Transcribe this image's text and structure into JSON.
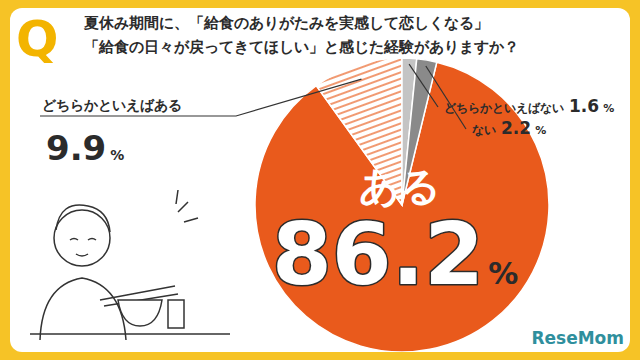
{
  "chart_data": {
    "type": "pie",
    "badge": "Q",
    "title": [
      "夏休み期間に、「給食のありがたみを実感して恋しくなる」",
      "「給食の日々が戻ってきてほしい」と感じた経験がありますか？"
    ],
    "categories": [
      "ある",
      "どちらかといえばある",
      "どちらかといえばない",
      "ない"
    ],
    "values": [
      86.2,
      9.9,
      1.6,
      2.2
    ],
    "value_labels": [
      "86.2%",
      "9.9%",
      "1.6%",
      "2.2%"
    ],
    "data_labels": true,
    "colors": [
      "#e95a1c",
      "#f19a72",
      "#c4c4c4",
      "#8a8a8a"
    ],
    "source": "ReseMom"
  }
}
